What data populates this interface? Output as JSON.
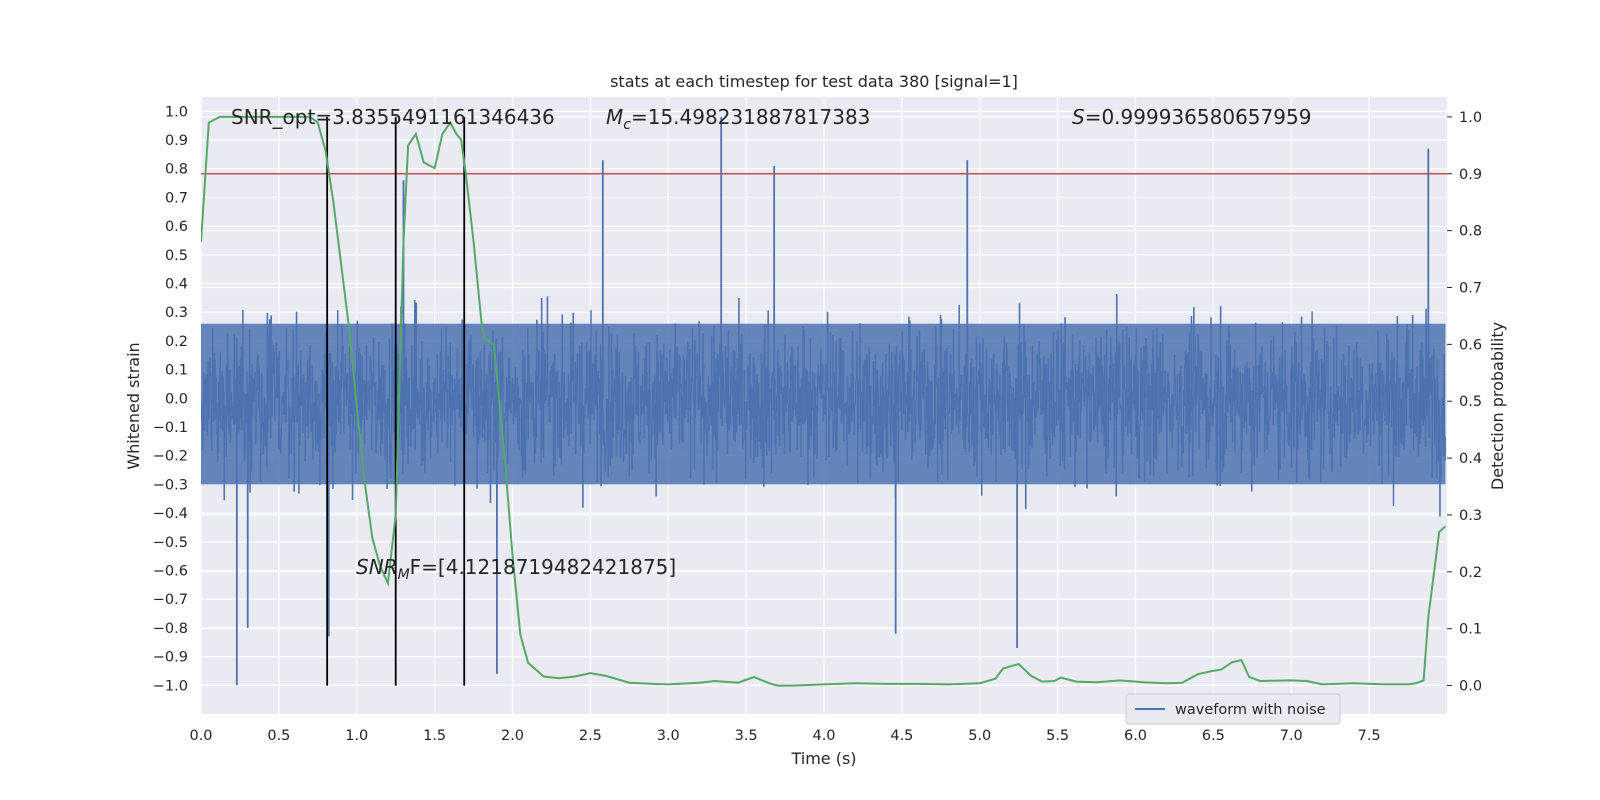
{
  "chart_data": {
    "type": "line",
    "title": "stats at each timestep for test data 380 [signal=1]",
    "xlabel": "Time (s)",
    "ylabel_left": "Whitened strain",
    "ylabel_right": "Detection probability",
    "xlim": [
      0.0,
      8.0
    ],
    "ylim_left": [
      -1.1,
      1.05
    ],
    "ylim_right": [
      -0.05,
      1.035
    ],
    "x_ticks": [
      "0.0",
      "0.5",
      "1.0",
      "1.5",
      "2.0",
      "2.5",
      "3.0",
      "3.5",
      "4.0",
      "4.5",
      "5.0",
      "5.5",
      "6.0",
      "6.5",
      "7.0",
      "7.5"
    ],
    "y_ticks_left": [
      "1.0",
      "0.9",
      "0.8",
      "0.7",
      "0.6",
      "0.5",
      "0.4",
      "0.3",
      "0.2",
      "0.1",
      "0.0",
      "−0.1",
      "−0.2",
      "−0.3",
      "−0.4",
      "−0.5",
      "−0.6",
      "−0.7",
      "−0.8",
      "−0.9",
      "−1.0"
    ],
    "y_ticks_right": [
      "1.0",
      "0.9",
      "0.8",
      "0.7",
      "0.6",
      "0.5",
      "0.4",
      "0.3",
      "0.2",
      "0.1",
      "0.0"
    ],
    "grid": true,
    "legend": {
      "position": "lower-right",
      "entries": [
        "waveform with noise"
      ]
    },
    "annotations": {
      "snr_opt": "SNR_opt=3.8355491161346436",
      "mc_symbol": "M",
      "mc_sub": "c",
      "mc_value": "=15.498231887817383",
      "s_symbol": "S",
      "s_value": "=0.999936580657959",
      "snr_mf_symbol": "SNR",
      "snr_mf_sub": "M",
      "snr_mf_tail": "F=[4.1218719482421875]"
    },
    "threshold": {
      "value_right": 0.9,
      "color": "#c44e52"
    },
    "vertical_markers_s": [
      0.81,
      1.25,
      1.69
    ],
    "series": [
      {
        "name": "waveform with noise",
        "axis": "left",
        "color": "#4c72b0",
        "x_range": [
          0.0,
          7.99
        ],
        "noise_envelope_approx": 0.33,
        "notable_peaks": [
          {
            "x": 3.34,
            "y": 0.98
          },
          {
            "x": 7.88,
            "y": 0.87
          },
          {
            "x": 2.58,
            "y": 0.83
          },
          {
            "x": 4.92,
            "y": 0.83
          },
          {
            "x": 3.68,
            "y": 0.81
          },
          {
            "x": 1.3,
            "y": 0.76
          },
          {
            "x": 0.23,
            "y": -1.0
          },
          {
            "x": 5.24,
            "y": -0.87
          },
          {
            "x": 1.9,
            "y": -0.96
          },
          {
            "x": 4.46,
            "y": -0.82
          },
          {
            "x": 0.82,
            "y": -0.83
          },
          {
            "x": 0.3,
            "y": -0.8
          }
        ]
      },
      {
        "axis": "right",
        "color": "#55a868",
        "x": [
          0.0,
          0.05,
          0.12,
          0.2,
          0.3,
          0.4,
          0.5,
          0.6,
          0.7,
          0.75,
          0.8,
          0.85,
          0.9,
          0.95,
          1.0,
          1.05,
          1.1,
          1.15,
          1.2,
          1.25,
          1.3,
          1.33,
          1.38,
          1.43,
          1.5,
          1.55,
          1.6,
          1.62,
          1.64,
          1.67,
          1.7,
          1.75,
          1.8,
          1.82,
          1.88,
          1.95,
          2.0,
          2.05,
          2.1,
          2.2,
          2.3,
          2.4,
          2.5,
          2.6,
          2.75,
          2.9,
          3.0,
          3.2,
          3.3,
          3.45,
          3.55,
          3.65,
          3.7,
          3.8,
          4.0,
          4.2,
          4.4,
          4.6,
          4.8,
          5.0,
          5.1,
          5.15,
          5.25,
          5.33,
          5.4,
          5.48,
          5.52,
          5.62,
          5.75,
          5.9,
          6.05,
          6.2,
          6.3,
          6.4,
          6.48,
          6.55,
          6.62,
          6.68,
          6.73,
          6.8,
          7.0,
          7.1,
          7.2,
          7.4,
          7.6,
          7.75,
          7.8,
          7.85,
          7.88,
          7.95,
          7.99
        ],
        "y": [
          0.78,
          0.99,
          1.0,
          1.0,
          1.0,
          1.0,
          1.0,
          1.0,
          1.0,
          0.99,
          0.94,
          0.85,
          0.74,
          0.63,
          0.49,
          0.36,
          0.26,
          0.21,
          0.18,
          0.3,
          0.78,
          0.95,
          0.97,
          0.92,
          0.91,
          0.97,
          0.99,
          0.98,
          0.97,
          0.96,
          0.9,
          0.78,
          0.64,
          0.61,
          0.6,
          0.4,
          0.23,
          0.09,
          0.04,
          0.016,
          0.013,
          0.016,
          0.022,
          0.017,
          0.005,
          0.003,
          0.002,
          0.005,
          0.008,
          0.005,
          0.015,
          0.004,
          0.0,
          0.0,
          0.002,
          0.004,
          0.003,
          0.003,
          0.002,
          0.004,
          0.012,
          0.03,
          0.038,
          0.017,
          0.007,
          0.008,
          0.014,
          0.007,
          0.006,
          0.009,
          0.006,
          0.004,
          0.005,
          0.02,
          0.025,
          0.028,
          0.041,
          0.045,
          0.015,
          0.008,
          0.009,
          0.008,
          0.002,
          0.004,
          0.002,
          0.002,
          0.004,
          0.009,
          0.12,
          0.27,
          0.28
        ]
      }
    ]
  }
}
